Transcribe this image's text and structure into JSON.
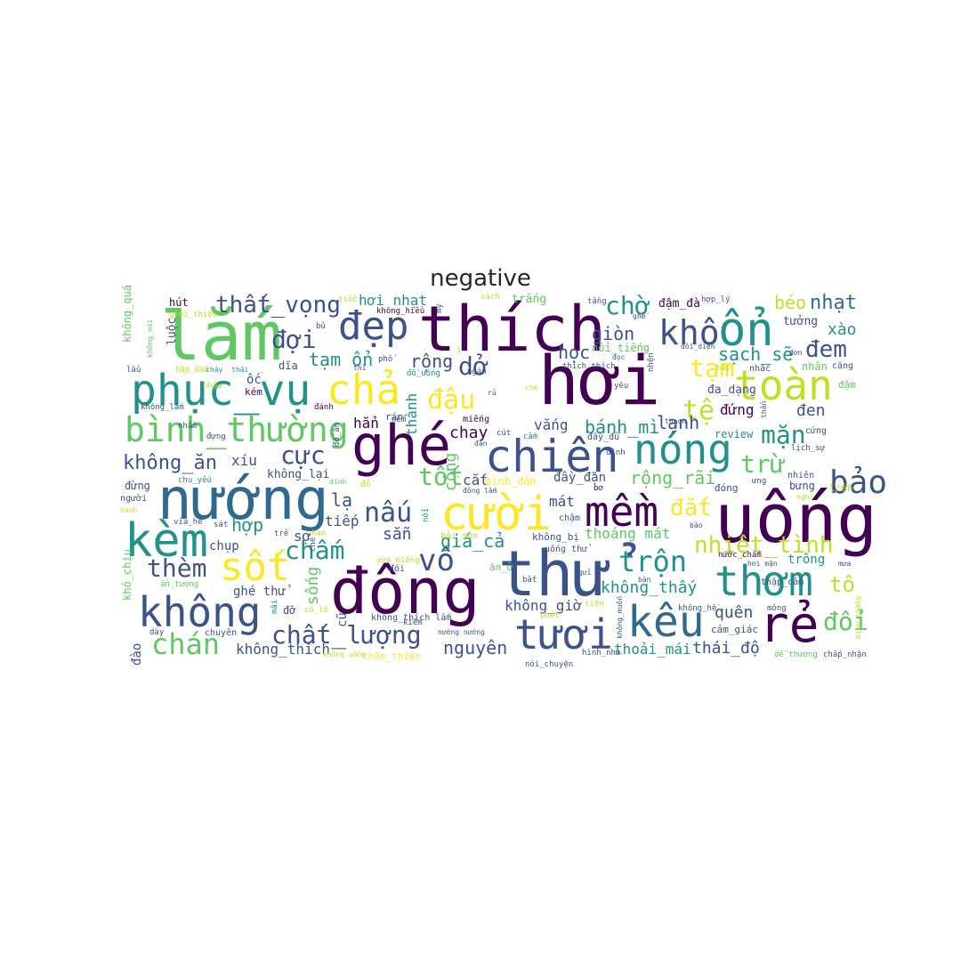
{
  "title": "negative",
  "colormap": [
    "#440154",
    "#3b528b",
    "#21918c",
    "#5ec962",
    "#fde725"
  ],
  "words": {
    "w_lam": "lắm",
    "w_phuc_vu": "phục_vụ",
    "w_binh_thuong": "bình_thường",
    "w_nuong": "nướng",
    "w_kem": "kèm",
    "w_khong": "không",
    "w_chan": "chán",
    "w_them": "thèm",
    "w_sot": "sốt",
    "w_dong": "đông",
    "w_thu": "thử",
    "w_thich": "thích",
    "w_hoi": "hơi",
    "w_dep": "đẹp",
    "w_cha": "chả",
    "w_ghe": "ghé",
    "w_chien": "chiên",
    "w_cuoi": "cười",
    "w_mem": "mềm",
    "w_uong": "uống",
    "w_on": "ổn",
    "w_toan": "toàn",
    "w_nong": "nóng",
    "w_thom": "thơm",
    "w_keu": "kêu",
    "w_re": "rẻ",
    "w_tuoi": "tươi",
    "w_bao": "bảo",
    "w_kho": "khô",
    "w_cho": "chờ",
    "w_that_vong": "thất_vọng",
    "w_doi": "đợi",
    "w_dau": "đậu",
    "w_chang": "chẳng",
    "w_te": "tệ",
    "w_tam": "tạm",
    "w_dem": "đem",
    "w_cuc": "cực",
    "w_tot": "tốt",
    "w_nau": "nấu",
    "w_cham": "chấm",
    "w_vo": "vô",
    "w_chat_luong": "chất_lượng",
    "w_tron": "trộn",
    "w_mac": "mắc",
    "w_dat": "đắt",
    "w_nhiet_tinh": "nhiệt_tình",
    "w_tru": "trừ",
    "w_man": "mặn",
    "w_doi2": "đổi",
    "w_to": "tô",
    "w_khong_thay": "không_thấy",
    "w_khong_an": "không_ăn",
    "w_tam_on": "tạm ổn",
    "w_do": "dở",
    "w_rong": "rộng",
    "w_banh_mi": "bánh_mì",
    "w_hoc": "học",
    "w_gion": "giòn",
    "w_sach_se": "sạch_sẽ",
    "w_nhat": "nhạt",
    "w_beo": "béo",
    "w_xao": "xào",
    "w_lanh": "lạnh",
    "w_den": "đen",
    "w_dung": "đứng",
    "w_chay": "chay",
    "w_hoi_nhat": "hơi nhạt",
    "w_nguyen": "nguyên",
    "w_quen": "quên",
    "w_thai_do": "thái_độ",
    "w_thoai_mai": "thoải_mái",
    "w_khong_gio": "không_giờ",
    "w_gia_ca": "giá_cả",
    "w_thoang_mat": "thoáng mát",
    "w_san": "sẵn",
    "w_mat": "mát",
    "w_rong_rai": "rộng_rãi",
    "w_tiep": "tiếp",
    "w_la": "lạ",
    "w_hop": "hợp",
    "w_so": "sợ",
    "w_song": "sống",
    "w_ghe_thu": "ghé thử",
    "w_khong_thich": "không_thích",
    "w_xiu": "xíu",
    "w_khong_lai": "không_lại",
    "w_cong": "cộng",
    "w_thanh": "thành",
    "w_han": "hẳn",
    "w_vang": "vắng",
    "w_cat": "cắt",
    "w_day_dan": "đầy_đặn",
    "w_khong_qua": "không_quá",
    "w_luoc": "luộc",
    "w_hut": "hút",
    "w_kho_chiu": "khó_chịu",
    "w_dao": "đào",
    "w_dung2": "đừng",
    "w_chup": "chụp",
    "w_tuong": "tưởng",
    "w_da_dang": "đa_dạng",
    "w_review": "review",
    "w_bung": "bưng",
    "w_trong": "trông",
    "w_lien": "liền",
    "w_dam_da": "đậm_đà",
    "w_trang": "trắng",
    "w_noi_tieng": "nổi_tiếng",
    "w_oc": "ốc",
    "w_kem2": "kém",
    "w_dia": "dĩa",
    "w_ran": "rán",
    "w_mieng": "miếng",
    "w_dong2": "đóng",
    "w_nhien": "nhiên",
    "w_cu": "cũ",
    "w_khong_thich_lam": "không_thích lắm",
    "w_an_o": "ăn_ở",
    "w_hai_san": "hải_sản",
    "w_khong_bi": "không_bị",
    "w_binh_dan": "bình_dân",
    "w_do2": "đỡ",
    "w_than_thien": "thân_thiện",
    "w_noi_chuyen": "nói_chuyện",
    "w_cham2": "chậm",
    "w_uong_thu": "uống thử",
    "w_nuoc_cham": "nước_chấm",
    "w_thap_cam": "thập_cẩm",
    "w_mong": "mỏng",
    "w_cam_giac": "cảm_giác",
    "w_chap_nhan": "chấp_nhận",
    "w_de_thuong": "dễ_thương",
    "w_hinh_nhu": "hình_như",
    "w_khong_he": "không_hề",
    "w_nhac": "nhắc",
    "w_nhan": "nhân",
    "w_cang": "căng",
    "w_dam": "đậm",
    "w_cung": "cứng",
    "w_hap": "hấp",
    "w_chuyen": "chuyên",
    "w_day": "dày",
    "w_khong_lam": "không_lắm",
    "w_gioi_thieu": "giới_thiệu",
    "w_khong_hieu": "không_hiểu",
    "w_hop_ly": "hợp_lý",
    "w_thich_thich": "thích thích",
    "w_do_uong": "đồ_uống",
    "w_tieu": "tiếc",
    "w_mi": "mỳ",
    "w_bu": "bủ",
    "w_pho": "phố",
    "w_dieu": "điều",
    "w_yeu": "yêu",
    "w_thach": "thạch",
    "w_day_du": "đầy_đủ",
    "w_dinh": "đính",
    "w_bo": "bơ",
    "w_ung": "ưng",
    "w_chu_yeu": "chu_yếu",
    "w_nguoi": "người",
    "w_via_he": "vỉa_hè",
    "w_sat": "sát",
    "w_tre": "trẻ",
    "w_han2": "hàn",
    "w_hap_dan": "hấp_dẫn",
    "w_lau": "lẩu",
    "w_danh": "đánh",
    "w_nham": "nhầm",
    "w_nhau": "nhậu",
    "w_dung3": "đựng",
    "w_dong_lam": "đông lắm",
    "w_vua_mieng": "vừa_miệng",
    "w_co_la": "có_lẽ",
    "w_an_tuong": "ấn_tượng",
    "w_mai": "mãi",
    "w_nem": "nếm",
    "w_cut": "cút",
    "w_cam": "cầm",
    "w_ngan": "ngán",
    "w_bat": "bắt",
    "w_gui": "gửi",
    "w_phet": "phết",
    "w_tien": "tiện",
    "w_kiem": "kiếm",
    "w_sach": "sách",
    "w_tang": "tầng",
    "w_doc": "đọc",
    "w_nhen": "nhện",
    "w_doi_dien": "đối_diện",
    "w_don": "đơn",
    "w_lich_su": "lịch_sự",
    "w_nghi": "nghỉ",
    "w_mua": "mưa",
    "w_hoi_man": "hơi mặn",
    "w_bao2": "báo",
    "w_khong_muon": "không_muốn",
    "w_binh_thang": "bình_thẳng",
    "w_dan": "đan",
    "w_noi": "nổi",
    "w_hanh": "hành",
    "w_chay2": "cháy",
    "w_thai": "thái",
    "w_che": "chế",
    "w_dinh2": "dính",
    "w_do3": "đồ",
    "w_do_an": "đồ_ăn",
    "w_khong_noi": "không_nói",
    "w_thi": "thì",
    "w_khong_uong": "không uống",
    "w_nuong_nuong": "nướng nướng",
    "w_doi3": "đói",
    "w_ban": "bàn",
    "w_ghe2": "ghế",
    "w_rau": "rủ",
    "w_che2": "chè",
    "w_i": "í",
    "w_than": "thẩn"
  }
}
